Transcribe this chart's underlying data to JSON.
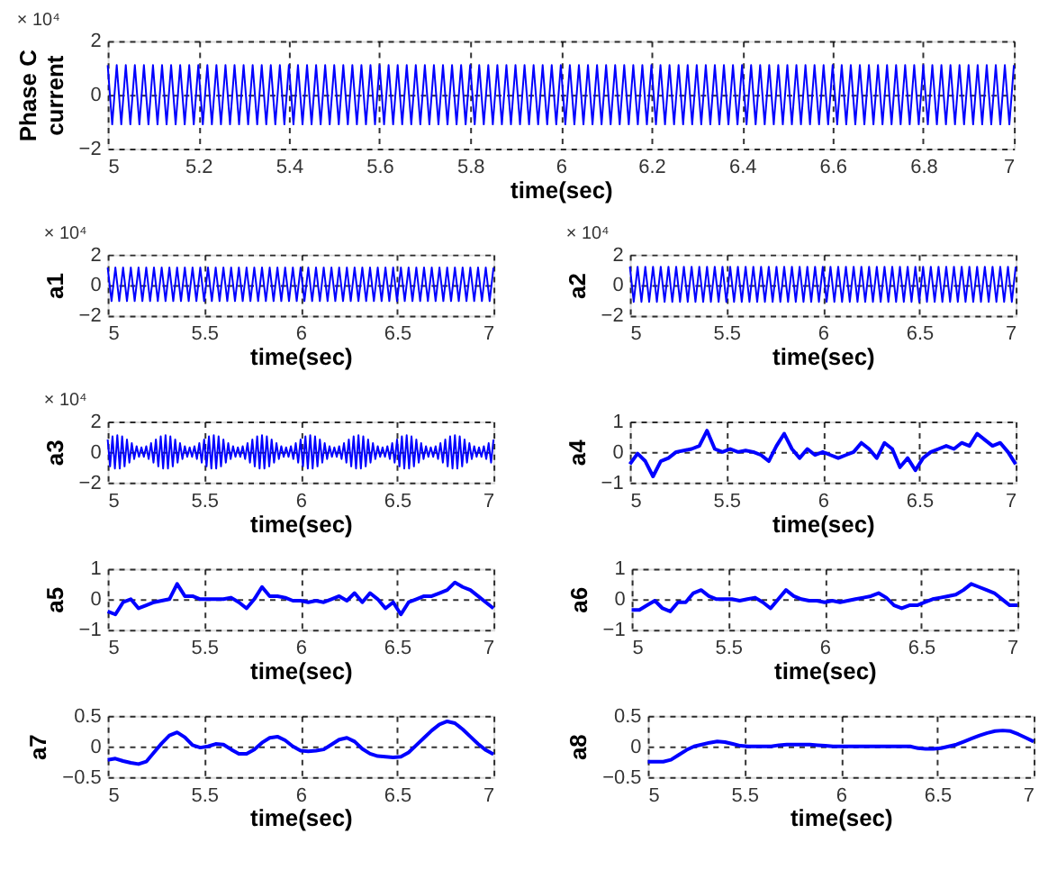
{
  "chart_data": [
    {
      "type": "line",
      "ylabel": "Phase C current",
      "xlabel": "time(sec)",
      "annotations": [
        "× 10⁴"
      ],
      "grid": true,
      "xlim": [
        5,
        7
      ],
      "xticks": [
        5,
        5.2,
        5.4,
        5.6,
        5.8,
        6,
        6.2,
        6.4,
        6.6,
        6.8,
        7
      ],
      "ylim": [
        -2,
        2
      ],
      "yticks": [
        -2,
        0,
        2
      ],
      "x": [
        5,
        5.01,
        5.02,
        5.03,
        5.04,
        5.05,
        5.06,
        5.07,
        5.08,
        5.09,
        5.1,
        5.11,
        5.12,
        5.13,
        5.14,
        5.15,
        5.16,
        5.17,
        5.18,
        5.19,
        5.2,
        5.21,
        5.22,
        5.23,
        5.24,
        5.25,
        5.26,
        5.27,
        5.28,
        5.29,
        5.3,
        5.31,
        5.32,
        5.33,
        5.34,
        5.35,
        5.36,
        5.37,
        5.38,
        5.39,
        5.4,
        5.41,
        5.42,
        5.43,
        5.44,
        5.45,
        5.46,
        5.47,
        5.48,
        5.49,
        5.5,
        5.51,
        5.52,
        5.53,
        5.54,
        5.55,
        5.56,
        5.57,
        5.58,
        5.59,
        5.6,
        5.61,
        5.62,
        5.63,
        5.64,
        5.65,
        5.66,
        5.67,
        5.68,
        5.69,
        5.7,
        5.71,
        5.72,
        5.73,
        5.74,
        5.75,
        5.76,
        5.77,
        5.78,
        5.79,
        5.8,
        5.81,
        5.82,
        5.83,
        5.84,
        5.85,
        5.86,
        5.87,
        5.88,
        5.89,
        5.9,
        5.91,
        5.92,
        5.93,
        5.94,
        5.95,
        5.96,
        5.97,
        5.98,
        5.99,
        6,
        6.01,
        6.02,
        6.03,
        6.04,
        6.05,
        6.06,
        6.07,
        6.08,
        6.09,
        6.1,
        6.11,
        6.12,
        6.13,
        6.14,
        6.15,
        6.16,
        6.17,
        6.18,
        6.19,
        6.2,
        6.21,
        6.22,
        6.23,
        6.24,
        6.25,
        6.26,
        6.27,
        6.28,
        6.29,
        6.3,
        6.31,
        6.32,
        6.33,
        6.34,
        6.35,
        6.36,
        6.37,
        6.38,
        6.39,
        6.4,
        6.41,
        6.42,
        6.43,
        6.44,
        6.45,
        6.46,
        6.47,
        6.48,
        6.49,
        6.5,
        6.51,
        6.52,
        6.53,
        6.54,
        6.55,
        6.56,
        6.57,
        6.58,
        6.59,
        6.6,
        6.61,
        6.62,
        6.63,
        6.64,
        6.65,
        6.66,
        6.67,
        6.68,
        6.69,
        6.7,
        6.71,
        6.72,
        6.73,
        6.74,
        6.75,
        6.76,
        6.77,
        6.78,
        6.79,
        6.8,
        6.81,
        6.82,
        6.83,
        6.84,
        6.85,
        6.86,
        6.87,
        6.88,
        6.89,
        6.9,
        6.91,
        6.92,
        6.93,
        6.94,
        6.95,
        6.96,
        6.97,
        6.98,
        6.99,
        7
      ],
      "series": [
        {
          "color": "#0000ff",
          "values": [
            1.1,
            -1.1,
            1.1,
            -1.1,
            1.1,
            -1.1,
            1.1,
            -1.1,
            1.1,
            -1.1,
            1.1,
            -1.1,
            1.1,
            -1.1,
            1.1,
            -1.1,
            1.1,
            -1.1,
            1.1,
            -1.1,
            1.1,
            -1.1,
            1.1,
            -1.1,
            1.1,
            -1.1,
            1.1,
            -1.1,
            1.1,
            -1.1,
            1.1,
            -1.1,
            1.1,
            -1.1,
            1.1,
            -1.1,
            1.1,
            -1.1,
            1.1,
            -1.1,
            1.1,
            -1.1,
            1.1,
            -1.1,
            1.1,
            -1.1,
            1.1,
            -1.1,
            1.1,
            -1.1,
            1.1,
            -1.1,
            1.1,
            -1.1,
            1.1,
            -1.1,
            1.1,
            -1.1,
            1.1,
            -1.1,
            1.1,
            -1.1,
            1.1,
            -1.1,
            1.1,
            -1.1,
            1.1,
            -1.1,
            1.1,
            -1.1,
            1.1,
            -1.1,
            1.1,
            -1.1,
            1.1,
            -1.1,
            1.1,
            -1.1,
            1.1,
            -1.1,
            1.1,
            -1.1,
            1.1,
            -1.1,
            1.1,
            -1.1,
            1.1,
            -1.1,
            1.1,
            -1.1,
            1.1,
            -1.1,
            1.1,
            -1.1,
            1.1,
            -1.1,
            1.1,
            -1.1,
            1.1,
            -1.1,
            1.1,
            -1.1,
            1.1,
            -1.1,
            1.1,
            -1.1,
            1.1,
            -1.1,
            1.1,
            -1.1,
            1.1,
            -1.1,
            1.1,
            -1.1,
            1.1,
            -1.1,
            1.1,
            -1.1,
            1.1,
            -1.1,
            1.1,
            -1.1,
            1.1,
            -1.1,
            1.1,
            -1.1,
            1.1,
            -1.1,
            1.1,
            -1.1,
            1.1,
            -1.1,
            1.1,
            -1.1,
            1.1,
            -1.1,
            1.1,
            -1.1,
            1.1,
            -1.1,
            1.1,
            -1.1,
            1.1,
            -1.1,
            1.1,
            -1.1,
            1.1,
            -1.1,
            1.1,
            -1.1,
            1.1,
            -1.1,
            1.1,
            -1.1,
            1.1,
            -1.1,
            1.1,
            -1.1,
            1.1,
            -1.1,
            1.1,
            -1.1,
            1.1,
            -1.1,
            1.1,
            -1.1,
            1.1,
            -1.1,
            1.1,
            -1.1,
            1.1,
            -1.1,
            1.1,
            -1.1,
            1.1,
            -1.1,
            1.1,
            -1.1,
            1.1,
            -1.1,
            1.1,
            -1.1,
            1.1,
            -1.1,
            1.1,
            -1.1,
            1.1,
            -1.1,
            1.1,
            -1.1,
            1.1,
            -1.1,
            1.1,
            -1.1,
            1.1,
            -1.1,
            1.1,
            -1.1,
            1.1,
            -1.1,
            1.1
          ]
        }
      ]
    },
    {
      "type": "line",
      "ylabel": "a1",
      "xlabel": "time(sec)",
      "annotations": [
        "× 10⁴"
      ],
      "grid": true,
      "xlim": [
        5,
        7
      ],
      "xticks": [
        5,
        5.5,
        6,
        6.5,
        7
      ],
      "ylim": [
        -2,
        2
      ],
      "yticks": [
        -2,
        0,
        2
      ],
      "x": [
        5,
        5.02,
        5.04,
        5.06,
        5.08,
        5.1,
        5.12,
        5.14,
        5.16,
        5.18,
        5.2,
        5.22,
        5.24,
        5.26,
        5.28,
        5.3,
        5.32,
        5.34,
        5.36,
        5.38,
        5.4,
        5.42,
        5.44,
        5.46,
        5.48,
        5.5,
        5.52,
        5.54,
        5.56,
        5.58,
        5.6,
        5.62,
        5.64,
        5.66,
        5.68,
        5.7,
        5.72,
        5.74,
        5.76,
        5.78,
        5.8,
        5.82,
        5.84,
        5.86,
        5.88,
        5.9,
        5.92,
        5.94,
        5.96,
        5.98,
        6,
        6.02,
        6.04,
        6.06,
        6.08,
        6.1,
        6.12,
        6.14,
        6.16,
        6.18,
        6.2,
        6.22,
        6.24,
        6.26,
        6.28,
        6.3,
        6.32,
        6.34,
        6.36,
        6.38,
        6.4,
        6.42,
        6.44,
        6.46,
        6.48,
        6.5,
        6.52,
        6.54,
        6.56,
        6.58,
        6.6,
        6.62,
        6.64,
        6.66,
        6.68,
        6.7,
        6.72,
        6.74,
        6.76,
        6.78,
        6.8,
        6.82,
        6.84,
        6.86,
        6.88,
        6.9,
        6.92,
        6.94,
        6.96,
        6.98,
        7
      ],
      "series": [
        {
          "color": "#0000ff",
          "values": [
            1.15,
            -1.05,
            1.15,
            -1.05,
            1.15,
            -1.05,
            1.15,
            -1.05,
            1.15,
            -1.05,
            1.15,
            -1.05,
            1.15,
            -1.05,
            1.15,
            -1.05,
            1.15,
            -1.05,
            1.15,
            -1.05,
            1.15,
            -1.05,
            1.15,
            -1.05,
            1.15,
            -1.05,
            1.15,
            -1.05,
            1.15,
            -1.05,
            1.15,
            -1.05,
            1.15,
            -1.05,
            1.15,
            -1.05,
            1.15,
            -1.05,
            1.15,
            -1.05,
            1.15,
            -1.05,
            1.15,
            -1.05,
            1.15,
            -1.05,
            1.15,
            -1.05,
            1.15,
            -1.05,
            1.15,
            -1.05,
            1.15,
            -1.05,
            1.15,
            -1.05,
            1.15,
            -1.05,
            1.15,
            -1.05,
            1.15,
            -1.05,
            1.15,
            -1.05,
            1.15,
            -1.05,
            1.15,
            -1.05,
            1.15,
            -1.05,
            1.15,
            -1.05,
            1.15,
            -1.05,
            1.15,
            -1.05,
            1.15,
            -1.05,
            1.15,
            -1.05,
            1.15,
            -1.05,
            1.15,
            -1.05,
            1.15,
            -1.05,
            1.15,
            -1.05,
            1.15,
            -1.05,
            1.15,
            -1.05,
            1.15,
            -1.05,
            1.15,
            -1.05,
            1.15,
            -1.05,
            1.15,
            -1.05,
            1.15
          ]
        }
      ]
    },
    {
      "type": "line",
      "ylabel": "a2",
      "xlabel": "time(sec)",
      "annotations": [
        "× 10⁴"
      ],
      "grid": true,
      "xlim": [
        5,
        7
      ],
      "xticks": [
        5,
        5.5,
        6,
        6.5,
        7
      ],
      "ylim": [
        -2,
        2
      ],
      "yticks": [
        -2,
        0,
        2
      ],
      "x": [
        5,
        5.02,
        5.04,
        5.06,
        5.08,
        5.1,
        5.12,
        5.14,
        5.16,
        5.18,
        5.2,
        5.22,
        5.24,
        5.26,
        5.28,
        5.3,
        5.32,
        5.34,
        5.36,
        5.38,
        5.4,
        5.42,
        5.44,
        5.46,
        5.48,
        5.5,
        5.52,
        5.54,
        5.56,
        5.58,
        5.6,
        5.62,
        5.64,
        5.66,
        5.68,
        5.7,
        5.72,
        5.74,
        5.76,
        5.78,
        5.8,
        5.82,
        5.84,
        5.86,
        5.88,
        5.9,
        5.92,
        5.94,
        5.96,
        5.98,
        6,
        6.02,
        6.04,
        6.06,
        6.08,
        6.1,
        6.12,
        6.14,
        6.16,
        6.18,
        6.2,
        6.22,
        6.24,
        6.26,
        6.28,
        6.3,
        6.32,
        6.34,
        6.36,
        6.38,
        6.4,
        6.42,
        6.44,
        6.46,
        6.48,
        6.5,
        6.52,
        6.54,
        6.56,
        6.58,
        6.6,
        6.62,
        6.64,
        6.66,
        6.68,
        6.7,
        6.72,
        6.74,
        6.76,
        6.78,
        6.8,
        6.82,
        6.84,
        6.86,
        6.88,
        6.9,
        6.92,
        6.94,
        6.96,
        6.98,
        7
      ],
      "series": [
        {
          "color": "#0000ff",
          "values": [
            1.2,
            -1.1,
            1.2,
            -1.1,
            1.2,
            -1.1,
            1.2,
            -1.1,
            1.2,
            -1.1,
            1.2,
            -1.1,
            1.2,
            -1.1,
            1.2,
            -1.1,
            1.2,
            -1.1,
            1.2,
            -1.1,
            1.2,
            -1.1,
            1.2,
            -1.1,
            1.2,
            -1.1,
            1.2,
            -1.1,
            1.2,
            -1.1,
            1.2,
            -1.1,
            1.2,
            -1.1,
            1.2,
            -1.1,
            1.2,
            -1.1,
            1.2,
            -1.1,
            1.2,
            -1.1,
            1.2,
            -1.1,
            1.2,
            -1.1,
            1.2,
            -1.1,
            1.2,
            -1.1,
            1.2,
            -1.1,
            1.2,
            -1.1,
            1.2,
            -1.1,
            1.2,
            -1.1,
            1.2,
            -1.1,
            1.2,
            -1.1,
            1.2,
            -1.1,
            1.2,
            -1.1,
            1.2,
            -1.1,
            1.2,
            -1.1,
            1.2,
            -1.1,
            1.2,
            -1.1,
            1.2,
            -1.1,
            1.2,
            -1.1,
            1.2,
            -1.1,
            1.2,
            -1.1,
            1.2,
            -1.1,
            1.2,
            -1.1,
            1.2,
            -1.1,
            1.2,
            -1.1,
            1.2,
            -1.1,
            1.2,
            -1.1,
            1.2,
            -1.1,
            1.2,
            -1.1,
            1.2,
            -1.1,
            1.2
          ]
        }
      ]
    },
    {
      "type": "line",
      "ylabel": "a3",
      "xlabel": "time(sec)",
      "annotations": [
        "× 10⁴"
      ],
      "grid": true,
      "xlim": [
        5,
        7
      ],
      "xticks": [
        5,
        5.5,
        6,
        6.5,
        7
      ],
      "ylim": [
        -2,
        2
      ],
      "yticks": [
        -2,
        0,
        2
      ],
      "x": [
        5,
        5.0125,
        5.025,
        5.0375,
        5.05,
        5.0625,
        5.075,
        5.0875,
        5.1,
        5.1125,
        5.125,
        5.1375,
        5.15,
        5.1625,
        5.175,
        5.1875,
        5.2,
        5.2125,
        5.225,
        5.2375,
        5.25,
        5.2625,
        5.275,
        5.2875,
        5.3,
        5.3125,
        5.325,
        5.3375,
        5.35,
        5.3625,
        5.375,
        5.3875,
        5.4,
        5.4125,
        5.425,
        5.4375,
        5.45,
        5.4625,
        5.475,
        5.4875,
        5.5,
        5.5125,
        5.525,
        5.5375,
        5.55,
        5.5625,
        5.575,
        5.5875,
        5.6,
        5.6125,
        5.625,
        5.6375,
        5.65,
        5.6625,
        5.675,
        5.6875,
        5.7,
        5.7125,
        5.725,
        5.7375,
        5.75,
        5.7625,
        5.775,
        5.7875,
        5.8,
        5.8125,
        5.825,
        5.8375,
        5.85,
        5.8625,
        5.875,
        5.8875,
        5.9,
        5.9125,
        5.925,
        5.9375,
        5.95,
        5.9625,
        5.975,
        5.9875,
        6,
        6.0125,
        6.025,
        6.0375,
        6.05,
        6.0625,
        6.075,
        6.0875,
        6.1,
        6.1125,
        6.125,
        6.1375,
        6.15,
        6.1625,
        6.175,
        6.1875,
        6.2,
        6.2125,
        6.225,
        6.2375,
        6.25,
        6.2625,
        6.275,
        6.2875,
        6.3,
        6.3125,
        6.325,
        6.3375,
        6.35,
        6.3625,
        6.375,
        6.3875,
        6.4,
        6.4125,
        6.425,
        6.4375,
        6.45,
        6.4625,
        6.475,
        6.4875,
        6.5,
        6.5125,
        6.525,
        6.5375,
        6.55,
        6.5625,
        6.575,
        6.5875,
        6.6,
        6.6125,
        6.625,
        6.6375,
        6.65,
        6.6625,
        6.675,
        6.6875,
        6.7,
        6.7125,
        6.725,
        6.7375,
        6.75,
        6.7625,
        6.775,
        6.7875,
        6.8,
        6.8125,
        6.825,
        6.8375,
        6.85,
        6.8625,
        6.875,
        6.8875,
        6.9,
        6.9125,
        6.925,
        6.9375,
        6.95,
        6.9625,
        6.975,
        6.9875,
        7
      ],
      "series": [
        {
          "color": "#0000ff",
          "values": [
            0.82,
            -0.94,
            1.02,
            -1.08,
            1.1,
            -1.08,
            1.02,
            -0.94,
            0.82,
            -0.7,
            0.58,
            -0.46,
            0.38,
            -0.32,
            0.3,
            -0.32,
            0.38,
            -0.46,
            0.58,
            -0.7,
            0.82,
            -0.94,
            1.02,
            -1.08,
            1.1,
            -1.08,
            1.02,
            -0.94,
            0.82,
            -0.7,
            0.58,
            -0.46,
            0.38,
            -0.32,
            0.3,
            -0.32,
            0.38,
            -0.46,
            0.58,
            -0.7,
            0.82,
            -0.94,
            1.02,
            -1.08,
            1.1,
            -1.08,
            1.02,
            -0.94,
            0.82,
            -0.7,
            0.58,
            -0.46,
            0.38,
            -0.32,
            0.3,
            -0.32,
            0.38,
            -0.46,
            0.58,
            -0.7,
            0.82,
            -0.94,
            1.02,
            -1.08,
            1.1,
            -1.08,
            1.02,
            -0.94,
            0.82,
            -0.7,
            0.58,
            -0.46,
            0.38,
            -0.32,
            0.3,
            -0.32,
            0.38,
            -0.46,
            0.58,
            -0.7,
            0.82,
            -0.94,
            1.02,
            -1.08,
            1.1,
            -1.08,
            1.02,
            -0.94,
            0.82,
            -0.7,
            0.58,
            -0.46,
            0.38,
            -0.32,
            0.3,
            -0.32,
            0.38,
            -0.46,
            0.58,
            -0.7,
            0.82,
            -0.94,
            1.02,
            -1.08,
            1.1,
            -1.08,
            1.02,
            -0.94,
            0.82,
            -0.7,
            0.58,
            -0.46,
            0.38,
            -0.32,
            0.3,
            -0.32,
            0.38,
            -0.46,
            0.58,
            -0.7,
            0.82,
            -0.94,
            1.02,
            -1.08,
            1.1,
            -1.08,
            1.02,
            -0.94,
            0.82,
            -0.7,
            0.58,
            -0.46,
            0.38,
            -0.32,
            0.3,
            -0.32,
            0.38,
            -0.46,
            0.58,
            -0.7,
            0.82,
            -0.94,
            1.02,
            -1.08,
            1.1,
            -1.08,
            1.02,
            -0.94,
            0.82,
            -0.7,
            0.58,
            -0.46,
            0.38,
            -0.32,
            0.3,
            -0.32,
            0.38,
            -0.46,
            0.58,
            -0.7,
            0.82
          ]
        }
      ]
    },
    {
      "type": "line",
      "ylabel": "a4",
      "xlabel": "time(sec)",
      "grid": true,
      "xlim": [
        5,
        7
      ],
      "xticks": [
        5,
        5.5,
        6,
        6.5,
        7
      ],
      "ylim": [
        -1,
        1
      ],
      "yticks": [
        -1,
        0,
        1
      ],
      "x": [
        5,
        5.04,
        5.08,
        5.12,
        5.16,
        5.2,
        5.24,
        5.28,
        5.32,
        5.36,
        5.4,
        5.44,
        5.48,
        5.52,
        5.56,
        5.6,
        5.64,
        5.68,
        5.72,
        5.76,
        5.8,
        5.84,
        5.88,
        5.92,
        5.96,
        6,
        6.04,
        6.08,
        6.12,
        6.16,
        6.2,
        6.24,
        6.28,
        6.32,
        6.36,
        6.4,
        6.44,
        6.48,
        6.52,
        6.56,
        6.6,
        6.64,
        6.68,
        6.72,
        6.76,
        6.8,
        6.84,
        6.88,
        6.92,
        6.96,
        7
      ],
      "series": [
        {
          "color": "#0000ff",
          "values": [
            -0.4,
            -0.05,
            -0.3,
            -0.8,
            -0.3,
            -0.2,
            0.0,
            0.05,
            0.1,
            0.2,
            0.7,
            0.1,
            0.0,
            0.1,
            0.0,
            0.05,
            0.0,
            -0.1,
            -0.3,
            0.2,
            0.6,
            0.1,
            -0.2,
            0.1,
            -0.1,
            0.0,
            -0.1,
            -0.2,
            -0.1,
            0.0,
            0.3,
            0.1,
            -0.2,
            0.3,
            0.1,
            -0.5,
            -0.2,
            -0.6,
            -0.2,
            0.0,
            0.1,
            0.2,
            0.1,
            0.3,
            0.2,
            0.6,
            0.4,
            0.2,
            0.3,
            0.0,
            -0.4
          ]
        }
      ]
    },
    {
      "type": "line",
      "ylabel": "a5",
      "xlabel": "time(sec)",
      "grid": true,
      "xlim": [
        5,
        7
      ],
      "xticks": [
        5,
        5.5,
        6,
        6.5,
        7
      ],
      "ylim": [
        -1,
        1
      ],
      "yticks": [
        -1,
        0,
        1
      ],
      "x": [
        5,
        5.04,
        5.08,
        5.12,
        5.16,
        5.2,
        5.24,
        5.28,
        5.32,
        5.36,
        5.4,
        5.44,
        5.48,
        5.52,
        5.56,
        5.6,
        5.64,
        5.68,
        5.72,
        5.76,
        5.8,
        5.84,
        5.88,
        5.92,
        5.96,
        6,
        6.04,
        6.08,
        6.12,
        6.16,
        6.2,
        6.24,
        6.28,
        6.32,
        6.36,
        6.4,
        6.44,
        6.48,
        6.52,
        6.56,
        6.6,
        6.64,
        6.68,
        6.72,
        6.76,
        6.8,
        6.84,
        6.88,
        6.92,
        6.96,
        7
      ],
      "series": [
        {
          "color": "#0000ff",
          "values": [
            -0.4,
            -0.5,
            -0.1,
            0.0,
            -0.3,
            -0.2,
            -0.1,
            -0.05,
            0.0,
            0.5,
            0.1,
            0.1,
            0.0,
            0.0,
            0.0,
            0.0,
            0.05,
            -0.1,
            -0.3,
            0.0,
            0.4,
            0.1,
            0.1,
            0.05,
            -0.05,
            -0.05,
            -0.1,
            -0.05,
            -0.1,
            0.0,
            0.1,
            -0.05,
            0.2,
            -0.1,
            0.2,
            0.0,
            -0.3,
            -0.1,
            -0.5,
            -0.1,
            0.0,
            0.1,
            0.1,
            0.2,
            0.3,
            0.55,
            0.4,
            0.3,
            0.1,
            -0.1,
            -0.3
          ]
        }
      ]
    },
    {
      "type": "line",
      "ylabel": "a6",
      "xlabel": "time(sec)",
      "grid": true,
      "xlim": [
        5,
        7
      ],
      "xticks": [
        5,
        5.5,
        6,
        6.5,
        7
      ],
      "ylim": [
        -1,
        1
      ],
      "yticks": [
        -1,
        0,
        1
      ],
      "x": [
        5,
        5.04,
        5.08,
        5.12,
        5.16,
        5.2,
        5.24,
        5.28,
        5.32,
        5.36,
        5.4,
        5.44,
        5.48,
        5.52,
        5.56,
        5.6,
        5.64,
        5.68,
        5.72,
        5.76,
        5.8,
        5.84,
        5.88,
        5.92,
        5.96,
        6,
        6.04,
        6.08,
        6.12,
        6.16,
        6.2,
        6.24,
        6.28,
        6.32,
        6.36,
        6.4,
        6.44,
        6.48,
        6.52,
        6.56,
        6.6,
        6.64,
        6.68,
        6.72,
        6.76,
        6.8,
        6.84,
        6.88,
        6.92,
        6.96,
        7
      ],
      "series": [
        {
          "color": "#0000ff",
          "values": [
            -0.35,
            -0.35,
            -0.2,
            -0.05,
            -0.3,
            -0.4,
            -0.1,
            -0.1,
            0.2,
            0.3,
            0.1,
            0.0,
            0.0,
            0.0,
            -0.05,
            0.0,
            0.05,
            -0.1,
            -0.3,
            0.0,
            0.3,
            0.1,
            0.0,
            -0.05,
            -0.05,
            -0.1,
            -0.05,
            -0.1,
            -0.05,
            0.0,
            0.05,
            0.1,
            0.2,
            0.05,
            -0.2,
            -0.3,
            -0.2,
            -0.2,
            -0.1,
            0.0,
            0.05,
            0.1,
            0.15,
            0.3,
            0.5,
            0.4,
            0.3,
            0.2,
            0.0,
            -0.2,
            -0.2
          ]
        }
      ]
    },
    {
      "type": "line",
      "ylabel": "a7",
      "xlabel": "time(sec)",
      "grid": true,
      "xlim": [
        5,
        7
      ],
      "xticks": [
        5,
        5.5,
        6,
        6.5,
        7
      ],
      "ylim": [
        -0.5,
        0.5
      ],
      "yticks": [
        -0.5,
        0,
        0.5
      ],
      "x": [
        5,
        5.04,
        5.08,
        5.12,
        5.16,
        5.2,
        5.24,
        5.28,
        5.32,
        5.36,
        5.4,
        5.44,
        5.48,
        5.52,
        5.56,
        5.6,
        5.64,
        5.68,
        5.72,
        5.76,
        5.8,
        5.84,
        5.88,
        5.92,
        5.96,
        6,
        6.04,
        6.08,
        6.12,
        6.16,
        6.2,
        6.24,
        6.28,
        6.32,
        6.36,
        6.4,
        6.44,
        6.48,
        6.52,
        6.56,
        6.6,
        6.64,
        6.68,
        6.72,
        6.76,
        6.8,
        6.84,
        6.88,
        6.92,
        6.96,
        7
      ],
      "series": [
        {
          "color": "#0000ff",
          "values": [
            -0.22,
            -0.2,
            -0.24,
            -0.27,
            -0.29,
            -0.25,
            -0.1,
            0.05,
            0.18,
            0.23,
            0.15,
            0.02,
            -0.02,
            0.0,
            0.04,
            0.03,
            -0.05,
            -0.12,
            -0.12,
            -0.05,
            0.06,
            0.14,
            0.16,
            0.1,
            0.0,
            -0.07,
            -0.08,
            -0.07,
            -0.05,
            0.03,
            0.11,
            0.14,
            0.08,
            -0.04,
            -0.12,
            -0.16,
            -0.17,
            -0.18,
            -0.17,
            -0.1,
            0.02,
            0.14,
            0.26,
            0.36,
            0.41,
            0.38,
            0.28,
            0.16,
            0.04,
            -0.06,
            -0.13
          ]
        }
      ]
    },
    {
      "type": "line",
      "ylabel": "a8",
      "xlabel": "time(sec)",
      "grid": true,
      "xlim": [
        5,
        7
      ],
      "xticks": [
        5,
        5.5,
        6,
        6.5,
        7
      ],
      "ylim": [
        -0.5,
        0.5
      ],
      "yticks": [
        -0.5,
        0,
        0.5
      ],
      "x": [
        5,
        5.04,
        5.08,
        5.12,
        5.16,
        5.2,
        5.24,
        5.28,
        5.32,
        5.36,
        5.4,
        5.44,
        5.48,
        5.52,
        5.56,
        5.6,
        5.64,
        5.68,
        5.72,
        5.76,
        5.8,
        5.84,
        5.88,
        5.92,
        5.96,
        6,
        6.04,
        6.08,
        6.12,
        6.16,
        6.2,
        6.24,
        6.28,
        6.32,
        6.36,
        6.4,
        6.44,
        6.48,
        6.52,
        6.56,
        6.6,
        6.64,
        6.68,
        6.72,
        6.76,
        6.8,
        6.84,
        6.88,
        6.92,
        6.96,
        7
      ],
      "series": [
        {
          "color": "#0000ff",
          "values": [
            -0.25,
            -0.25,
            -0.25,
            -0.22,
            -0.14,
            -0.06,
            0.0,
            0.03,
            0.06,
            0.08,
            0.07,
            0.04,
            0.01,
            0.0,
            0.0,
            0.0,
            0.0,
            0.02,
            0.03,
            0.03,
            0.03,
            0.03,
            0.02,
            0.01,
            0.0,
            0.0,
            0.0,
            0.0,
            0.0,
            0.0,
            0.0,
            0.0,
            0.0,
            0.0,
            0.0,
            -0.03,
            -0.04,
            -0.04,
            -0.03,
            0.0,
            0.03,
            0.08,
            0.13,
            0.18,
            0.22,
            0.25,
            0.26,
            0.25,
            0.2,
            0.14,
            0.08
          ]
        }
      ]
    }
  ]
}
